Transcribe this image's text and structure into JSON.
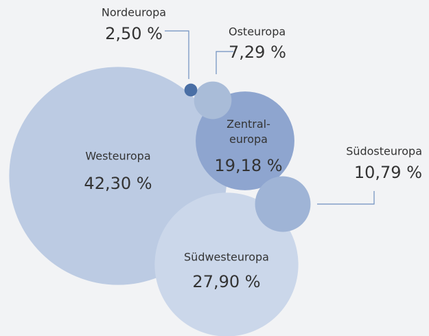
{
  "chart_data": {
    "type": "bubble",
    "categories": [
      "Westeuropa",
      "Südwesteuropa",
      "Zentral-\neuropa",
      "Südosteuropa",
      "Osteuropa",
      "Nordeuropa"
    ],
    "values": [
      42.3,
      27.9,
      19.18,
      10.79,
      7.29,
      2.5
    ],
    "value_labels": [
      "42,30 %",
      "27,90 %",
      "19,18 %",
      "10,79 %",
      "7,29 %",
      "2,50 %"
    ],
    "colors": [
      "#bccbe3",
      "#cbd7ea",
      "#8ea5cf",
      "#9fb4d6",
      "#a9bcd8",
      "#4a6fa5"
    ]
  }
}
